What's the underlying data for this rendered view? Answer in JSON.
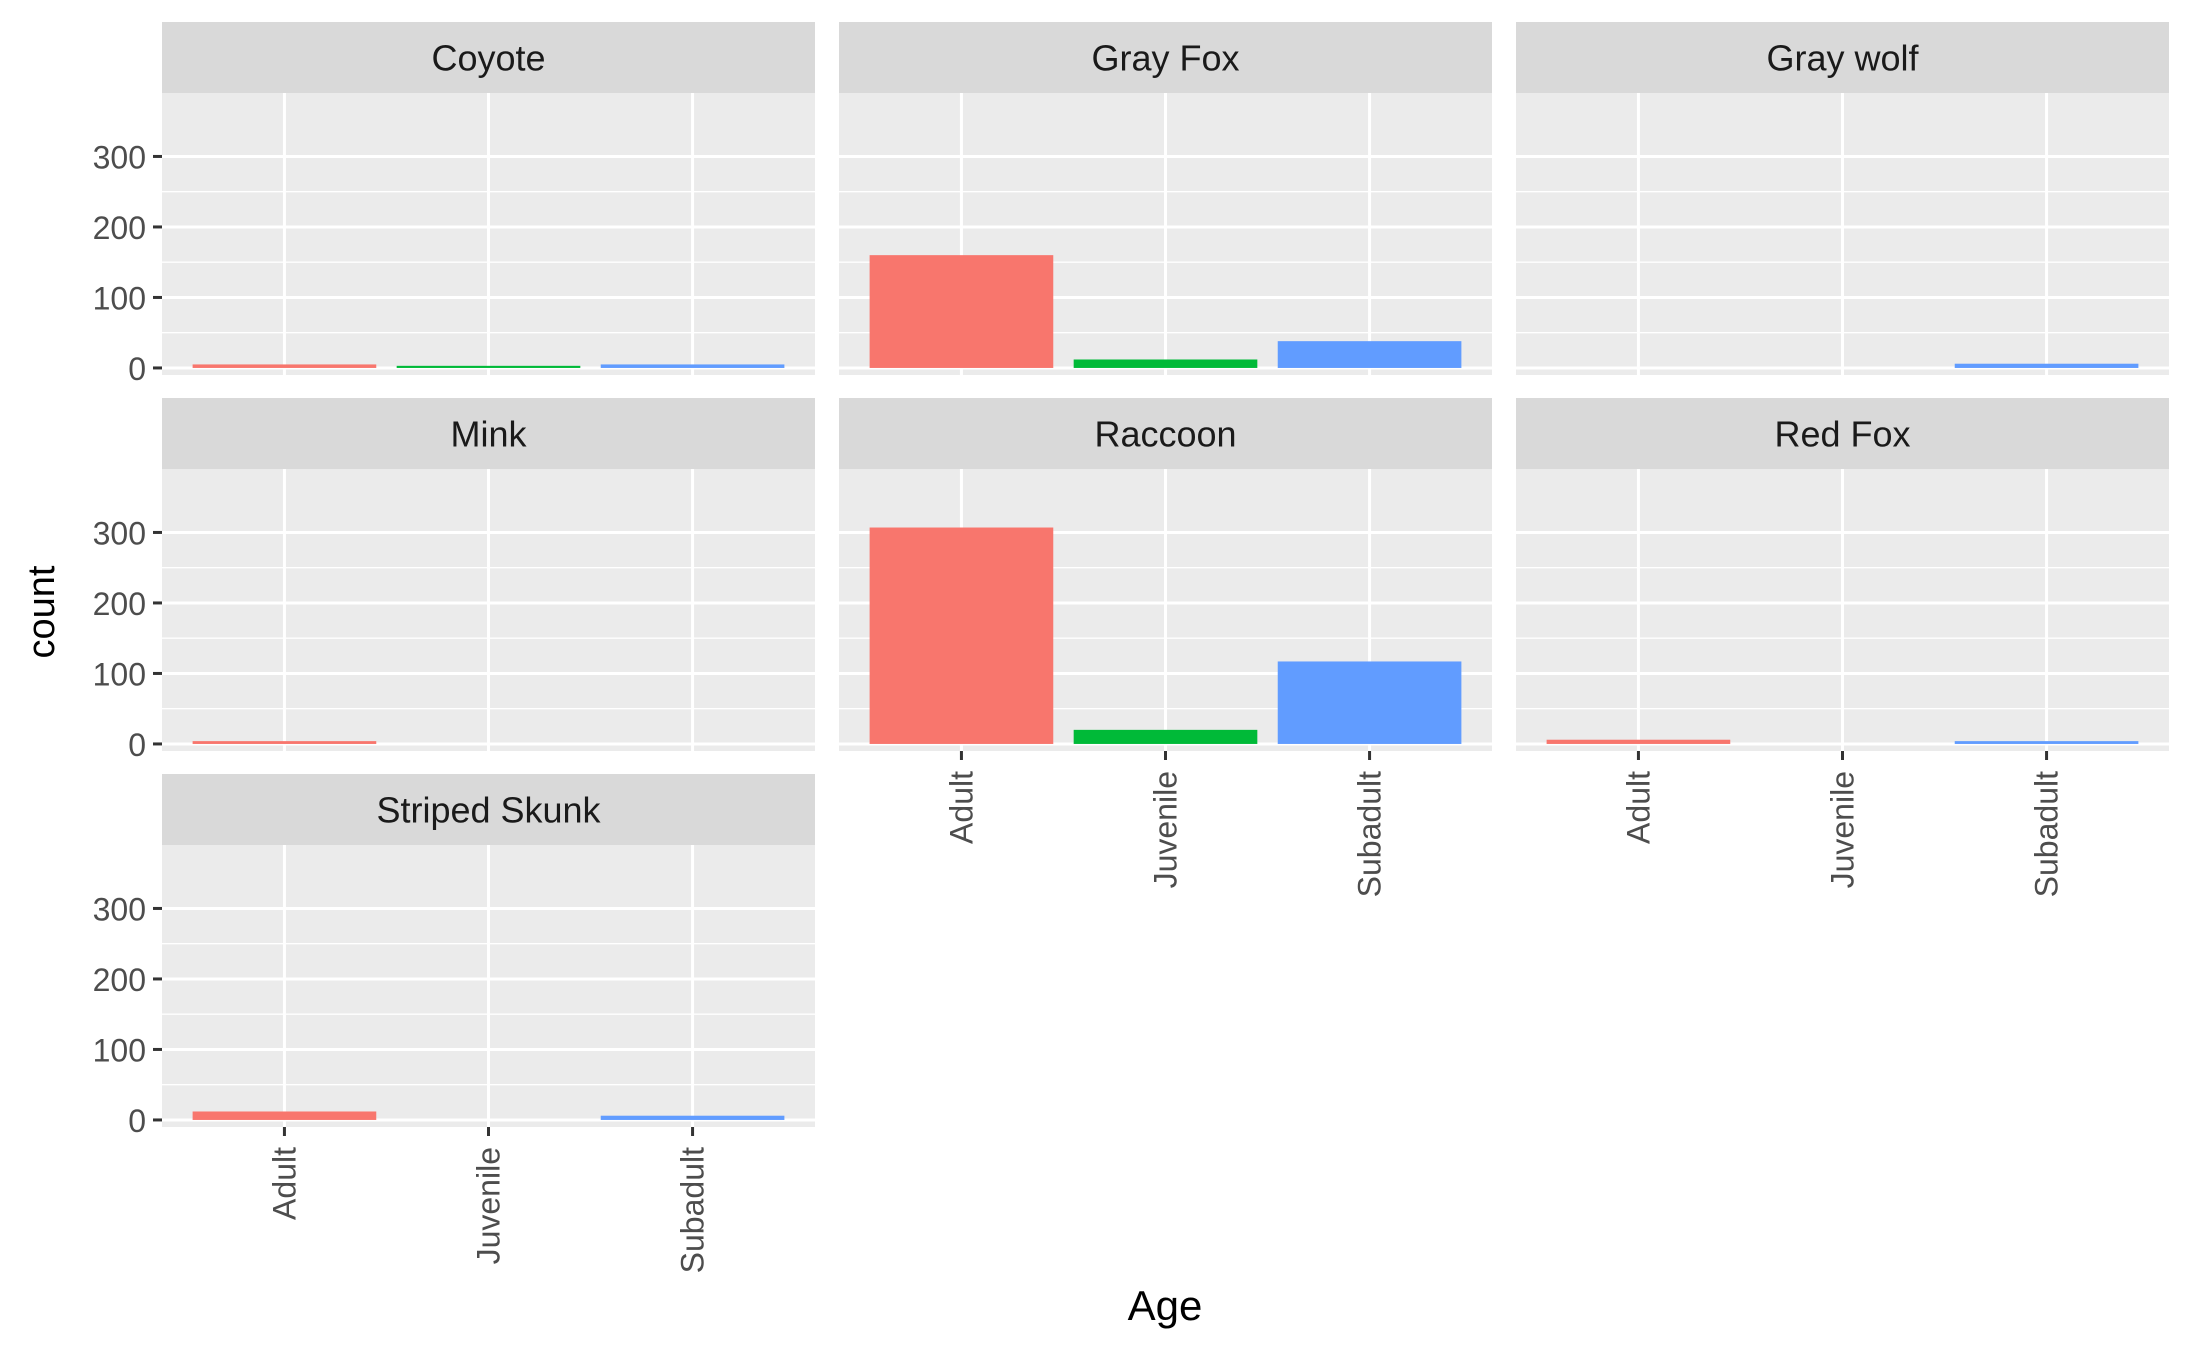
{
  "chart_data": {
    "type": "bar",
    "faceted": true,
    "xlabel": "Age",
    "ylabel": "count",
    "categories": [
      "Adult",
      "Juvenile",
      "Subadult"
    ],
    "category_colors": [
      "#F8766D",
      "#00BA38",
      "#619CFF"
    ],
    "ylim": [
      -10,
      390
    ],
    "yticks": [
      0,
      100,
      200,
      300
    ],
    "ytick_labels": [
      "0",
      "100",
      "200",
      "300"
    ],
    "grid": true,
    "facets": [
      {
        "name": "Coyote",
        "values": [
          5,
          3,
          5
        ]
      },
      {
        "name": "Gray Fox",
        "values": [
          160,
          12,
          38
        ]
      },
      {
        "name": "Gray wolf",
        "values": [
          0,
          0,
          6
        ]
      },
      {
        "name": "Mink",
        "values": [
          4,
          0,
          0
        ]
      },
      {
        "name": "Raccoon",
        "values": [
          307,
          20,
          117
        ]
      },
      {
        "name": "Red Fox",
        "values": [
          6,
          0,
          4
        ]
      },
      {
        "name": "Striped Skunk",
        "values": [
          12,
          0,
          6
        ]
      }
    ]
  }
}
